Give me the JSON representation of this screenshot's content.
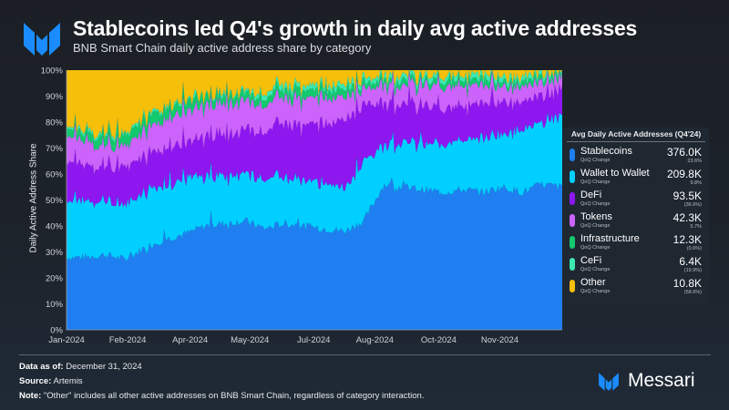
{
  "header": {
    "title": "Stablecoins led Q4's growth in daily avg active addresses",
    "subtitle": "BNB Smart Chain daily active address share by category"
  },
  "chart_data": {
    "type": "area",
    "stacked": true,
    "normalized": true,
    "title": "Stablecoins led Q4's growth in daily avg active addresses",
    "subtitle": "BNB Smart Chain daily active address share by category",
    "xlabel": "",
    "ylabel": "Daily Active Address Share",
    "ylim": [
      0,
      100
    ],
    "yticks": [
      "0%",
      "10%",
      "20%",
      "30%",
      "40%",
      "50%",
      "60%",
      "70%",
      "80%",
      "90%",
      "100%"
    ],
    "xticks": [
      "Jan-2024",
      "Feb-2024",
      "Apr-2024",
      "May-2024",
      "Jul-2024",
      "Aug-2024",
      "Oct-2024",
      "Nov-2024"
    ],
    "grid": false,
    "legend_position": "right",
    "x": [
      "2024-01-01",
      "2024-01-15",
      "2024-02-01",
      "2024-02-15",
      "2024-03-01",
      "2024-03-15",
      "2024-04-01",
      "2024-04-15",
      "2024-05-01",
      "2024-05-15",
      "2024-06-01",
      "2024-06-15",
      "2024-07-01",
      "2024-07-15",
      "2024-07-25",
      "2024-08-01",
      "2024-08-15",
      "2024-09-01",
      "2024-09-15",
      "2024-10-01",
      "2024-10-15",
      "2024-11-01",
      "2024-11-15",
      "2024-12-01",
      "2024-12-15",
      "2024-12-31"
    ],
    "series": [
      {
        "name": "Stablecoins",
        "color": "#1f7ff0",
        "values": [
          28,
          28,
          29,
          27,
          32,
          35,
          37,
          40,
          41,
          42,
          39,
          41,
          40,
          39,
          38,
          42,
          56,
          55,
          54,
          53,
          54,
          53,
          55,
          53,
          56,
          55
        ]
      },
      {
        "name": "Wallet to Wallet",
        "color": "#00cfff",
        "values": [
          22,
          22,
          21,
          20,
          22,
          21,
          21,
          19,
          18,
          18,
          19,
          18,
          17,
          18,
          17,
          23,
          15,
          17,
          18,
          19,
          19,
          21,
          21,
          24,
          24,
          26
        ]
      },
      {
        "name": "DeFi",
        "color": "#8e17f0",
        "values": [
          15,
          14,
          13,
          15,
          13,
          14,
          14,
          15,
          16,
          17,
          19,
          20,
          22,
          23,
          26,
          22,
          16,
          15,
          14,
          14,
          13,
          13,
          12,
          11,
          10,
          10
        ]
      },
      {
        "name": "Tokens",
        "color": "#cc63fa",
        "values": [
          10,
          9,
          8,
          8,
          10,
          11,
          12,
          12,
          12,
          11,
          10,
          10,
          10,
          10,
          9,
          6,
          7,
          7,
          8,
          8,
          8,
          7,
          6,
          6,
          5,
          5
        ]
      },
      {
        "name": "Infrastructure",
        "color": "#12c96e",
        "values": [
          3,
          3,
          4,
          4,
          4,
          4,
          4,
          3,
          3,
          3,
          3,
          3,
          3,
          3,
          3,
          2,
          2,
          2,
          2,
          2,
          2,
          2,
          2,
          2,
          2,
          2
        ]
      },
      {
        "name": "CeFi",
        "color": "#3ce8b0",
        "values": [
          1,
          1,
          1,
          1,
          1,
          1,
          1,
          1,
          1,
          1,
          2,
          2,
          2,
          2,
          2,
          2,
          2,
          2,
          2,
          2,
          2,
          2,
          2,
          2,
          2,
          1
        ]
      },
      {
        "name": "Other",
        "color": "#f6bf0a",
        "values": [
          21,
          23,
          24,
          25,
          18,
          14,
          11,
          10,
          9,
          8,
          8,
          6,
          6,
          5,
          5,
          3,
          2,
          2,
          2,
          2,
          2,
          2,
          2,
          2,
          1,
          1
        ]
      }
    ]
  },
  "legend": {
    "title": "Avg Daily Active Addresses (Q4'24)",
    "sub_label": "QoQ Change",
    "items": [
      {
        "name": "Stablecoins",
        "value": "376.0K",
        "change": "23.6%",
        "color": "#1f7ff0"
      },
      {
        "name": "Wallet to Wallet",
        "value": "209.8K",
        "change": "9.8%",
        "color": "#00cfff"
      },
      {
        "name": "DeFi",
        "value": "93.5K",
        "change": "(36.6%)",
        "color": "#8e17f0"
      },
      {
        "name": "Tokens",
        "value": "42.3K",
        "change": "5.7%",
        "color": "#cc63fa"
      },
      {
        "name": "Infrastructure",
        "value": "12.3K",
        "change": "(0.6%)",
        "color": "#12c96e"
      },
      {
        "name": "CeFi",
        "value": "6.4K",
        "change": "(19.9%)",
        "color": "#3ce8b0"
      },
      {
        "name": "Other",
        "value": "10.8K",
        "change": "(58.6%)",
        "color": "#f6bf0a"
      }
    ]
  },
  "footer": {
    "data_as_of_label": "Data as of:",
    "data_as_of_value": " December 31, 2024",
    "source_label": "Source:",
    "source_value": " Artemis",
    "note_label": "Note:",
    "note_value": " \"Other\" includes all other active addresses on BNB Smart Chain, regardless of category interaction."
  },
  "brand": {
    "name": "Messari",
    "color": "#1a8cff"
  }
}
